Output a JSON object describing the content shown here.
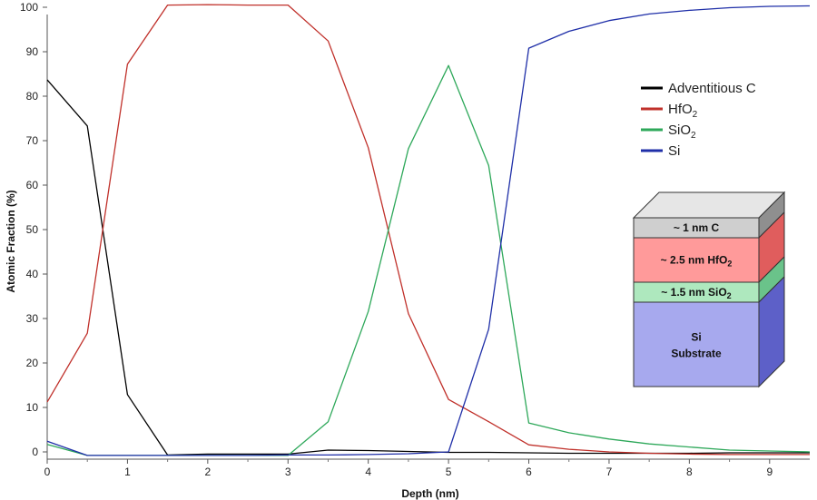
{
  "chart_data": {
    "type": "line",
    "xlabel": "Depth (nm)",
    "ylabel": "Atomic Fraction (%)",
    "xlim": [
      0,
      9.5
    ],
    "ylim": [
      0,
      100
    ],
    "x_ticks": [
      "0",
      "1",
      "2",
      "3",
      "4",
      "5",
      "6",
      "7",
      "8",
      "9"
    ],
    "y_ticks": [
      "0",
      "10",
      "20",
      "30",
      "40",
      "50",
      "60",
      "70",
      "80",
      "90",
      "100"
    ],
    "legend_position": "top-right",
    "series": [
      {
        "name": "Adventitious C",
        "name_main": "Adventitious C",
        "name_sub": "",
        "color": "#000000",
        "x": [
          0,
          0.5,
          1,
          1.5,
          2,
          2.5,
          3,
          3.5,
          4,
          4.5,
          5,
          5.5,
          6,
          6.5,
          7,
          7.5,
          8,
          8.5,
          9,
          9.5
        ],
        "values": [
          83.7,
          73.3,
          12.9,
          -0.7,
          -0.5,
          -0.5,
          -0.5,
          0.4,
          0.3,
          0.1,
          -0.1,
          -0.1,
          -0.2,
          -0.3,
          -0.3,
          -0.3,
          -0.3,
          -0.2,
          -0.2,
          -0.2
        ]
      },
      {
        "name": "HfO2",
        "name_main": "HfO",
        "name_sub": "2",
        "color": "#c0302a",
        "x": [
          0,
          0.5,
          1,
          1.5,
          2,
          2.5,
          3,
          3.5,
          4,
          4.5,
          5,
          5.5,
          6,
          6.5,
          7,
          7.5,
          8,
          8.5,
          9,
          9.5
        ],
        "values": [
          11.2,
          26.7,
          87.2,
          100.5,
          100.6,
          100.5,
          100.5,
          92.4,
          68.4,
          31.1,
          11.8,
          6.8,
          1.6,
          0.6,
          0,
          -0.3,
          -0.5,
          -0.6,
          -0.6,
          -0.6
        ]
      },
      {
        "name": "SiO2",
        "name_main": "SiO",
        "name_sub": "2",
        "color": "#2ea85a",
        "x": [
          0,
          0.5,
          1,
          1.5,
          2,
          2.5,
          3,
          3.5,
          4,
          4.5,
          5,
          5.5,
          6,
          6.5,
          7,
          7.5,
          8,
          8.5,
          9,
          9.5
        ],
        "values": [
          1.7,
          -0.8,
          -0.8,
          -0.8,
          -0.8,
          -0.8,
          -0.8,
          6.8,
          31.6,
          68.2,
          86.9,
          64.4,
          6.5,
          4.3,
          2.9,
          1.8,
          1.1,
          0.4,
          0.2,
          0
        ]
      },
      {
        "name": "Si",
        "name_main": "Si",
        "name_sub": "",
        "color": "#1f2fa8",
        "x": [
          0,
          0.5,
          1,
          1.5,
          2,
          2.5,
          3,
          3.5,
          4,
          4.5,
          5,
          5.5,
          6,
          6.5,
          7,
          7.5,
          8,
          8.5,
          9,
          9.5
        ],
        "values": [
          2.4,
          -0.8,
          -0.8,
          -0.8,
          -0.8,
          -0.8,
          -0.7,
          -0.7,
          -0.6,
          -0.4,
          0,
          27.6,
          90.8,
          94.6,
          97,
          98.5,
          99.3,
          99.9,
          100.2,
          100.3
        ]
      }
    ],
    "inset": {
      "layers": [
        {
          "label_main": "~ 1 nm C",
          "label_sub": "",
          "label_tail": "",
          "front": "#cfcfcf",
          "side": "#8f8f8f",
          "top": "#e6e6e6"
        },
        {
          "label_main": "~ 2.5 nm HfO",
          "label_sub": "2",
          "label_tail": "",
          "front": "#ff9a9a",
          "side": "#e05d5d",
          "top": "#ffc4c4"
        },
        {
          "label_main": "~ 1.5 nm SiO",
          "label_sub": "2",
          "label_tail": "",
          "front": "#aee8be",
          "side": "#6ac38a",
          "top": "#d4f5dd"
        },
        {
          "label_main": "Si",
          "label_sub": "",
          "label_tail": "Substrate",
          "front": "#a7a9ee",
          "side": "#5d60c8",
          "top": "#c9caf5"
        }
      ]
    }
  }
}
